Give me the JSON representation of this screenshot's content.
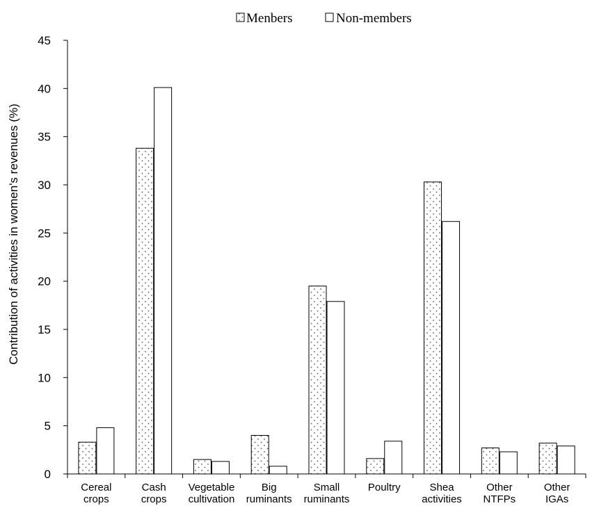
{
  "chart_data": {
    "type": "bar",
    "title": "",
    "xlabel": "",
    "ylabel": "Contribution of activities in women's revenues (%)",
    "ylim": [
      0,
      45
    ],
    "yticks": [
      0,
      5,
      10,
      15,
      20,
      25,
      30,
      35,
      40,
      45
    ],
    "grid": false,
    "legend_position": "top-center",
    "categories": [
      [
        "Cereal",
        "crops"
      ],
      [
        "Cash",
        "crops"
      ],
      [
        "Vegetable",
        "cultivation"
      ],
      [
        "Big",
        "ruminants"
      ],
      [
        "Small",
        "ruminants"
      ],
      [
        "Poultry"
      ],
      [
        "Shea",
        "activities"
      ],
      [
        "Other",
        "NTFPs"
      ],
      [
        "Other",
        "IGAs"
      ]
    ],
    "series": [
      {
        "name": "Menbers",
        "pattern": "dotted",
        "values": [
          3.3,
          33.8,
          1.5,
          4.0,
          19.5,
          1.6,
          30.3,
          2.7,
          3.2
        ]
      },
      {
        "name": "Non-members",
        "pattern": "plain",
        "values": [
          4.8,
          40.1,
          1.3,
          0.8,
          17.9,
          3.4,
          26.2,
          2.3,
          2.9
        ]
      }
    ]
  },
  "colors": {
    "bar_fill": "#ffffff",
    "bar_stroke": "#000000",
    "dot": "#555555"
  }
}
